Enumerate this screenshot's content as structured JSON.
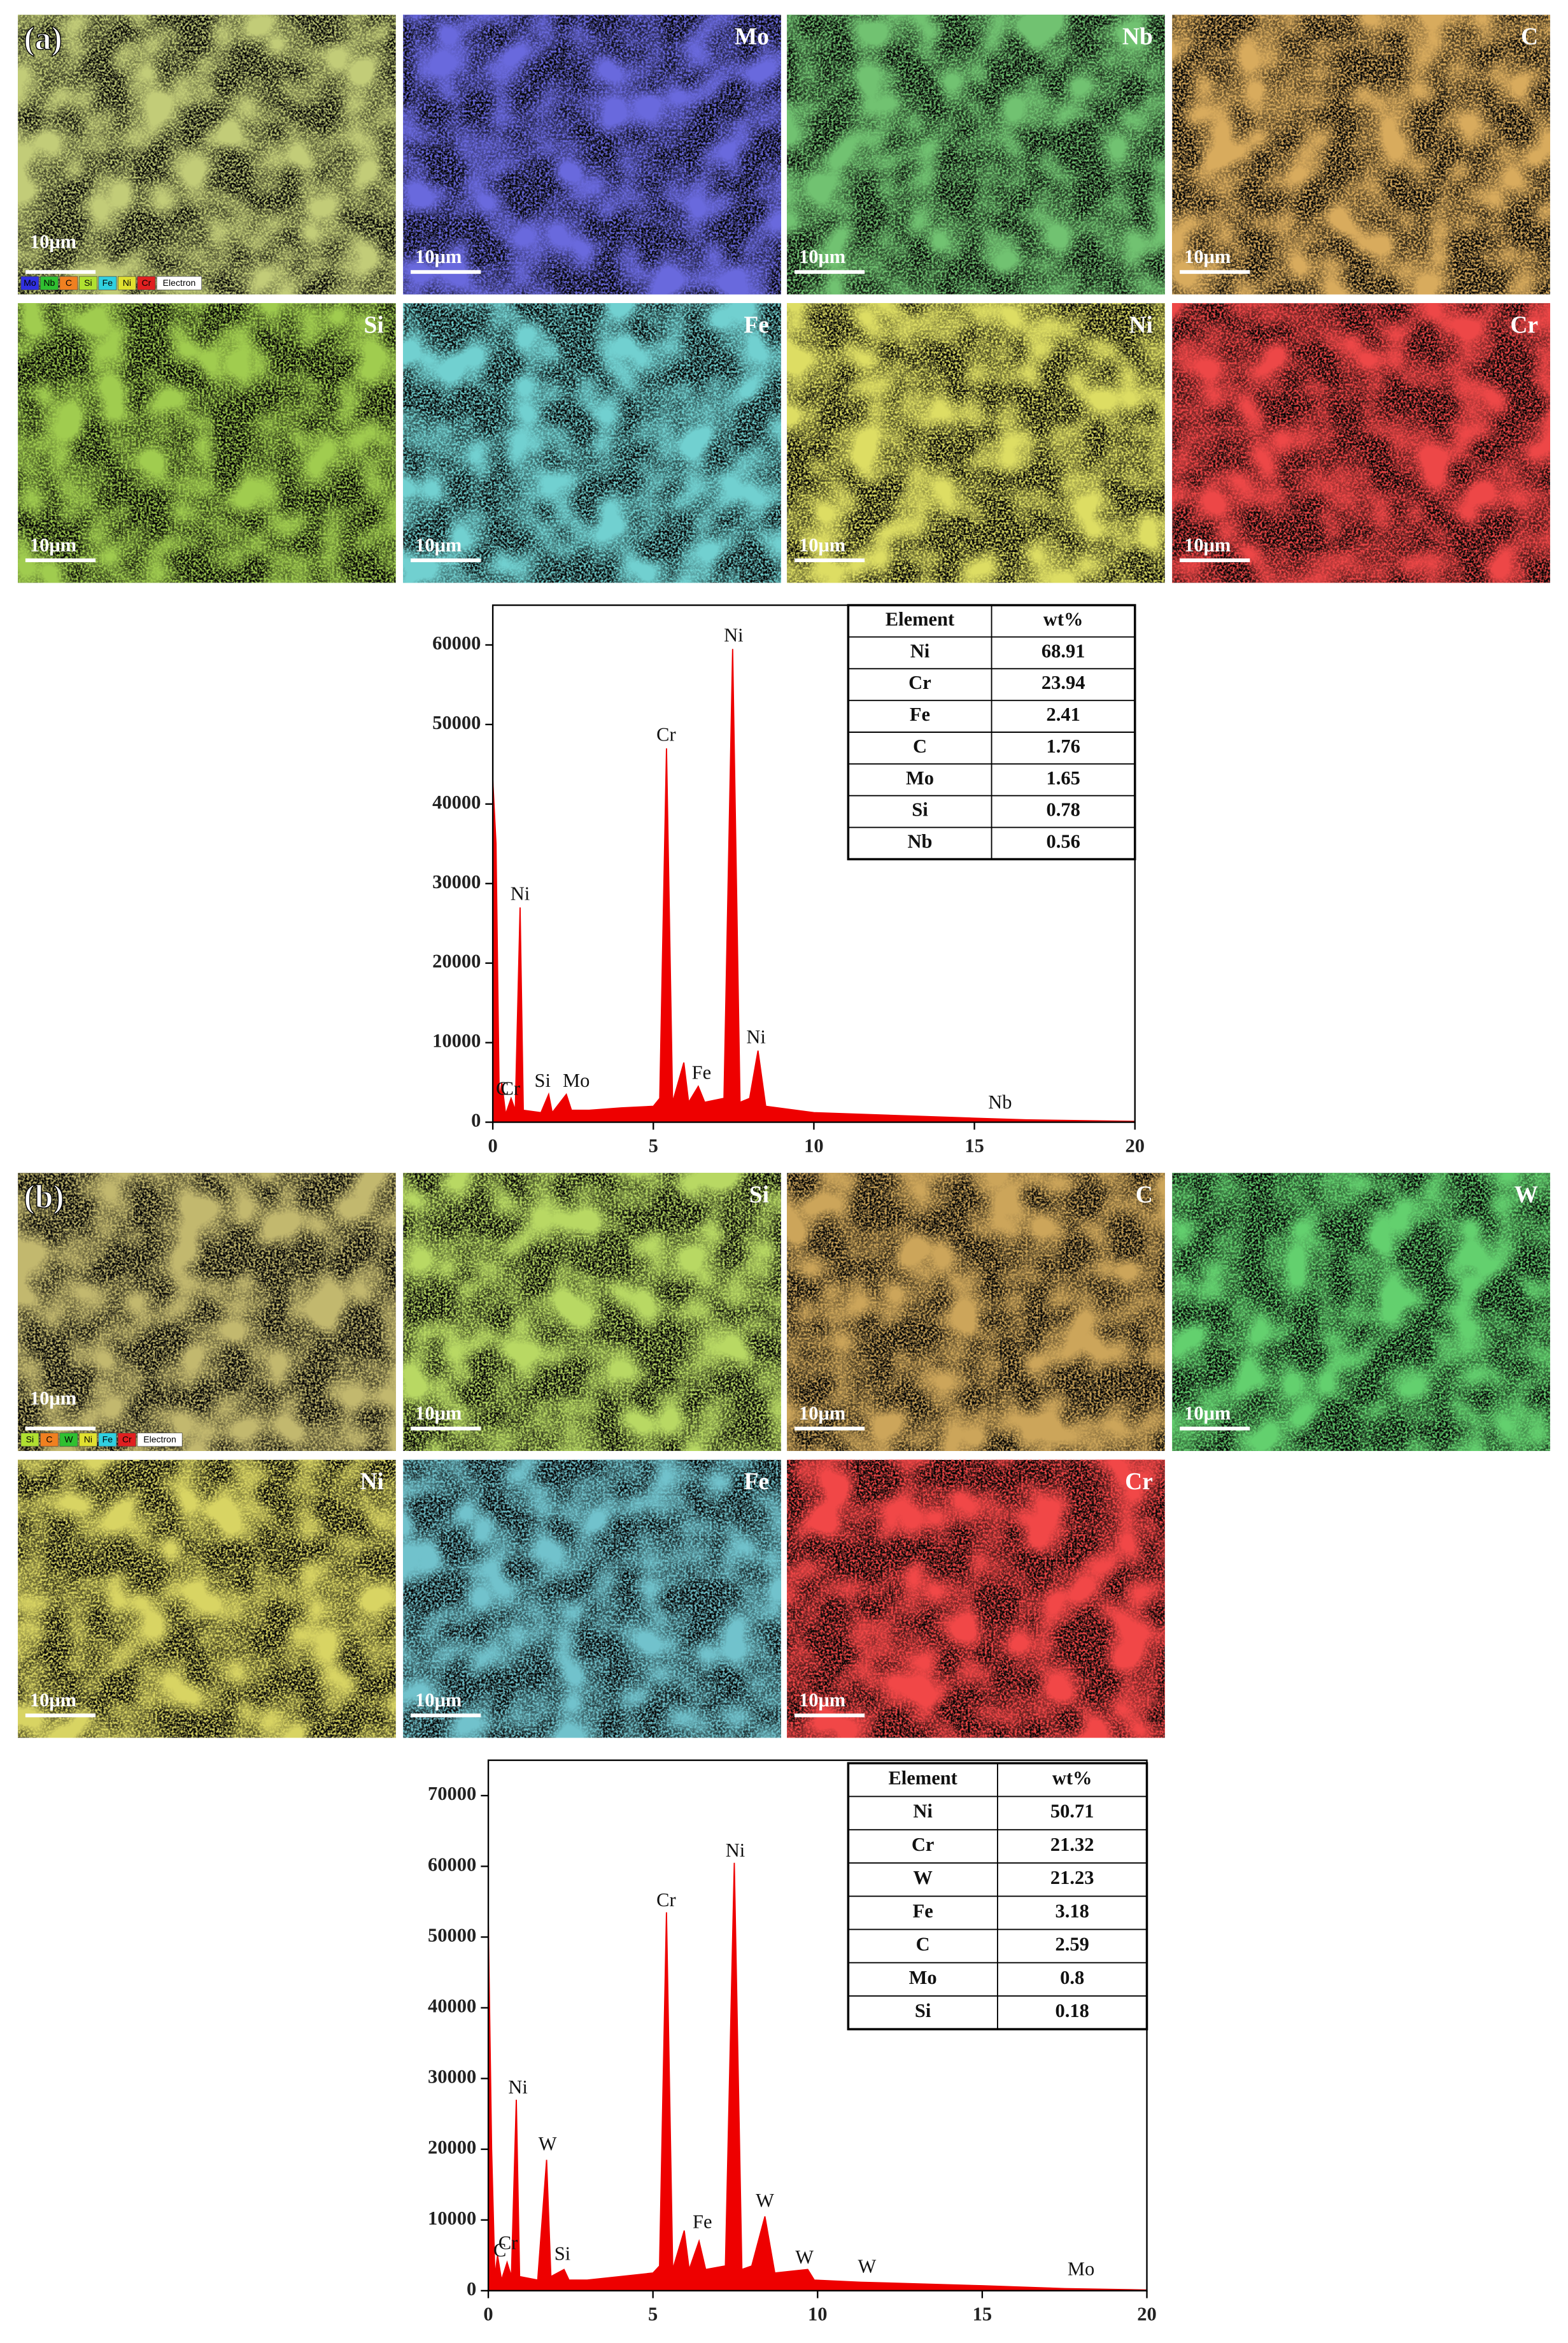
{
  "panels": [
    {
      "label": "(a)",
      "maps": [
        {
          "legend": [
            {
              "name": "Mo",
              "color": "#3030e0"
            },
            {
              "name": "Nb",
              "color": "#30c030"
            },
            {
              "name": "C",
              "color": "#f08020"
            },
            {
              "name": "Si",
              "color": "#b0e030"
            },
            {
              "name": "Fe",
              "color": "#30d0e0"
            },
            {
              "name": "Ni",
              "color": "#e0e030"
            },
            {
              "name": "Cr",
              "color": "#e02020"
            },
            {
              "name": "Electron",
              "color": "#ffffff"
            }
          ],
          "scale_bar": "10μm",
          "color": "#8a9a30"
        },
        {
          "element": "Mo",
          "scale_bar": "10μm",
          "color": "#2424b8"
        },
        {
          "element": "Nb",
          "scale_bar": "10μm",
          "color": "#2a8a2a"
        },
        {
          "element": "C",
          "scale_bar": "10μm",
          "color": "#b0681c"
        },
        {
          "element": "Si",
          "scale_bar": "10μm",
          "color": "#5a9a14"
        },
        {
          "element": "Fe",
          "scale_bar": "10μm",
          "color": "#2aa0a0"
        },
        {
          "element": "Ni",
          "scale_bar": "10μm",
          "color": "#b8b820"
        },
        {
          "element": "Cr",
          "scale_bar": "10μm",
          "color": "#d81010"
        }
      ],
      "chart_data": {
        "type": "area",
        "color": "#ee0000",
        "x": [
          0,
          0.1,
          0.2,
          0.28,
          0.4,
          0.57,
          0.7,
          0.85,
          0.95,
          1.5,
          1.74,
          1.85,
          2.29,
          2.45,
          3,
          4,
          5,
          5.2,
          5.41,
          5.6,
          5.95,
          6.1,
          6.4,
          6.6,
          7.2,
          7.47,
          7.7,
          8.0,
          8.26,
          8.5,
          10,
          15,
          16.6,
          20
        ],
        "values": [
          43000,
          35000,
          3000,
          5000,
          1000,
          3000,
          1500,
          27000,
          1500,
          1200,
          3500,
          1200,
          3500,
          1500,
          1500,
          1800,
          2000,
          3000,
          47000,
          2500,
          7500,
          2500,
          4500,
          2500,
          3000,
          59500,
          2500,
          3000,
          9000,
          2000,
          1200,
          500,
          300,
          100
        ],
        "xlim": [
          0,
          20
        ],
        "ylim": [
          0,
          65000
        ],
        "xticks": [
          0,
          5,
          10,
          15,
          20
        ],
        "yticks": [
          0,
          10000,
          20000,
          30000,
          40000,
          50000,
          60000
        ],
        "annotations": [
          {
            "text": "C",
            "x": 0.3,
            "y": 4000
          },
          {
            "text": "Cr",
            "x": 0.55,
            "y": 4000
          },
          {
            "text": "Ni",
            "x": 0.85,
            "y": 28500
          },
          {
            "text": "Si",
            "x": 1.55,
            "y": 5000
          },
          {
            "text": "Mo",
            "x": 2.6,
            "y": 5000
          },
          {
            "text": "Cr",
            "x": 5.4,
            "y": 48500
          },
          {
            "text": "Fe",
            "x": 6.5,
            "y": 6000
          },
          {
            "text": "Ni",
            "x": 7.5,
            "y": 61000
          },
          {
            "text": "Ni",
            "x": 8.2,
            "y": 10500
          },
          {
            "text": "Nb",
            "x": 15.8,
            "y": 2300
          }
        ]
      },
      "table": {
        "header": [
          "Element",
          "wt%"
        ],
        "rows": [
          [
            "Ni",
            "68.91"
          ],
          [
            "Cr",
            "23.94"
          ],
          [
            "Fe",
            "2.41"
          ],
          [
            "C",
            "1.76"
          ],
          [
            "Mo",
            "1.65"
          ],
          [
            "Si",
            "0.78"
          ],
          [
            "Nb",
            "0.56"
          ]
        ]
      }
    },
    {
      "label": "(b)",
      "maps": [
        {
          "legend": [
            {
              "name": "Si",
              "color": "#b0e030"
            },
            {
              "name": "C",
              "color": "#f08020"
            },
            {
              "name": "W",
              "color": "#30c030"
            },
            {
              "name": "Ni",
              "color": "#e0e030"
            },
            {
              "name": "Fe",
              "color": "#30d0e0"
            },
            {
              "name": "Cr",
              "color": "#e02020"
            },
            {
              "name": "Electron",
              "color": "#ffffff"
            }
          ],
          "scale_bar": "10μm",
          "color": "#8a7a28"
        },
        {
          "element": "Si",
          "scale_bar": "10μm",
          "color": "#7ab020"
        },
        {
          "element": "C",
          "scale_bar": "10μm",
          "color": "#9a601a"
        },
        {
          "element": "W",
          "scale_bar": "10μm",
          "color": "#20a028"
        },
        {
          "element": "Ni",
          "scale_bar": "10μm",
          "color": "#b0a820"
        },
        {
          "element": "Fe",
          "scale_bar": "10μm",
          "color": "#2a8a9a"
        },
        {
          "element": "Cr",
          "scale_bar": "10μm",
          "color": "#e01010"
        }
      ],
      "chart_data": {
        "type": "area",
        "color": "#ee0000",
        "x": [
          0,
          0.1,
          0.2,
          0.28,
          0.4,
          0.57,
          0.7,
          0.85,
          0.95,
          1.5,
          1.77,
          1.9,
          2.3,
          2.45,
          3,
          4,
          5,
          5.2,
          5.41,
          5.6,
          5.95,
          6.1,
          6.4,
          6.6,
          7.2,
          7.47,
          7.7,
          8.0,
          8.4,
          8.7,
          9.7,
          9.9,
          11.3,
          15,
          17.5,
          20
        ],
        "values": [
          52000,
          20000,
          2000,
          5000,
          1500,
          4000,
          2000,
          27000,
          2000,
          1500,
          18500,
          2000,
          3000,
          1500,
          1500,
          2000,
          2500,
          3500,
          53500,
          3000,
          8500,
          3000,
          7000,
          3000,
          3500,
          60500,
          3000,
          3500,
          10500,
          2500,
          3000,
          1500,
          1200,
          700,
          300,
          100
        ],
        "xlim": [
          0,
          20
        ],
        "ylim": [
          0,
          75000
        ],
        "xticks": [
          0,
          5,
          10,
          15,
          20
        ],
        "yticks": [
          0,
          10000,
          20000,
          30000,
          40000,
          50000,
          60000,
          70000
        ],
        "annotations": [
          {
            "text": "C",
            "x": 0.35,
            "y": 5500
          },
          {
            "text": "Cr",
            "x": 0.6,
            "y": 6500
          },
          {
            "text": "Ni",
            "x": 0.9,
            "y": 28500
          },
          {
            "text": "W",
            "x": 1.8,
            "y": 20500
          },
          {
            "text": "Si",
            "x": 2.25,
            "y": 5000
          },
          {
            "text": "Cr",
            "x": 5.4,
            "y": 55000
          },
          {
            "text": "Fe",
            "x": 6.5,
            "y": 9500
          },
          {
            "text": "Ni",
            "x": 7.5,
            "y": 62000
          },
          {
            "text": "W",
            "x": 8.4,
            "y": 12500
          },
          {
            "text": "W",
            "x": 9.6,
            "y": 4500
          },
          {
            "text": "W",
            "x": 11.5,
            "y": 3200
          },
          {
            "text": "Mo",
            "x": 18,
            "y": 2800
          }
        ]
      },
      "table": {
        "header": [
          "Element",
          "wt%"
        ],
        "rows": [
          [
            "Ni",
            "50.71"
          ],
          [
            "Cr",
            "21.32"
          ],
          [
            "W",
            "21.23"
          ],
          [
            "Fe",
            "3.18"
          ],
          [
            "C",
            "2.59"
          ],
          [
            "Mo",
            "0.8"
          ],
          [
            "Si",
            "0.18"
          ]
        ]
      }
    }
  ]
}
